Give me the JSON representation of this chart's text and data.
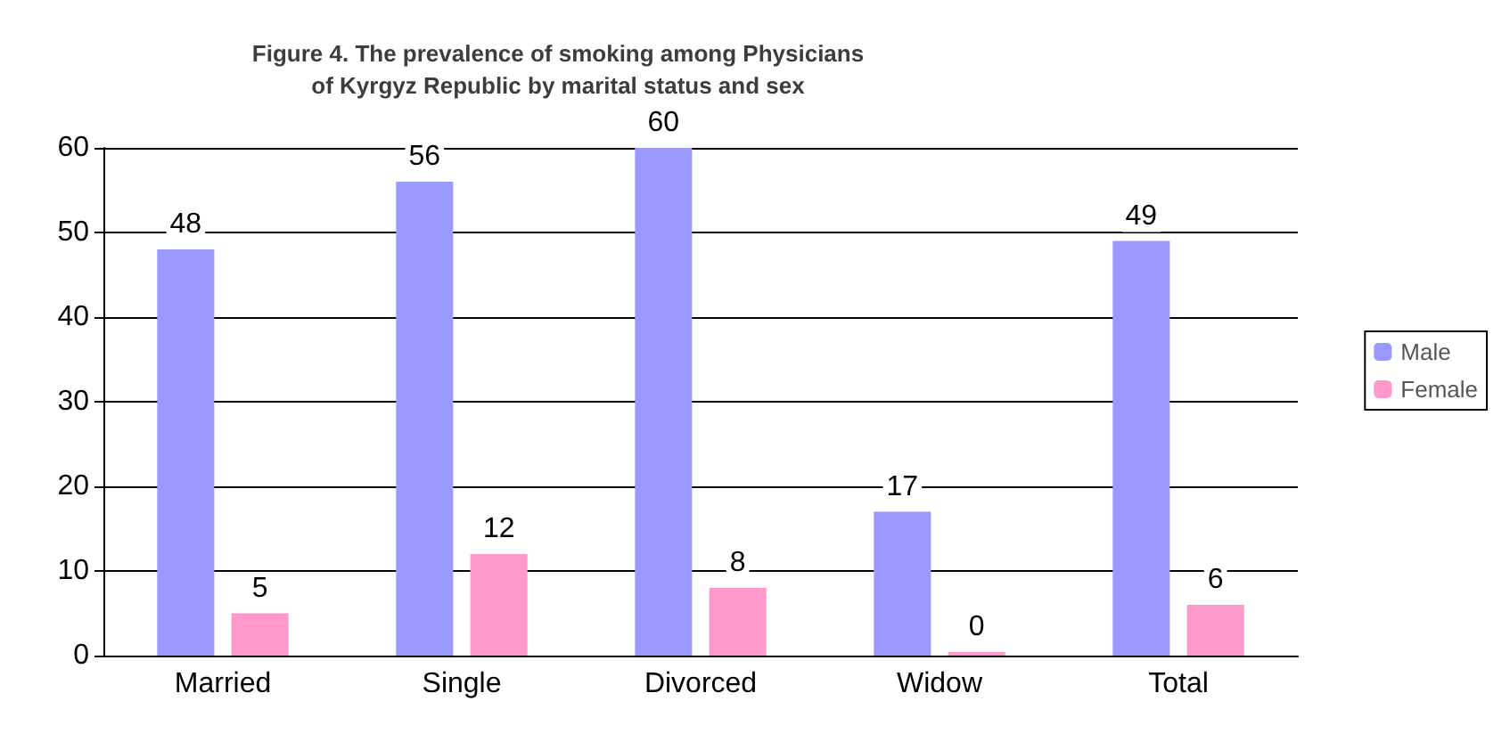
{
  "chart_data": {
    "type": "bar",
    "title": "Figure 4. The prevalence of smoking among Physicians\nof Kyrgyz Republic by marital status and sex",
    "categories": [
      "Married",
      "Single",
      "Divorced",
      "Widow",
      "Total"
    ],
    "series": [
      {
        "name": "Male",
        "color": "#9999ff",
        "values": [
          48,
          56,
          60,
          17,
          49
        ]
      },
      {
        "name": "Female",
        "color": "#ff99cc",
        "values": [
          5,
          12,
          8,
          0,
          6
        ]
      }
    ],
    "ylim": [
      0,
      60
    ],
    "yticks": [
      0,
      10,
      20,
      30,
      40,
      50,
      60
    ],
    "grid": "y",
    "legend": "right",
    "data_labels": true
  }
}
